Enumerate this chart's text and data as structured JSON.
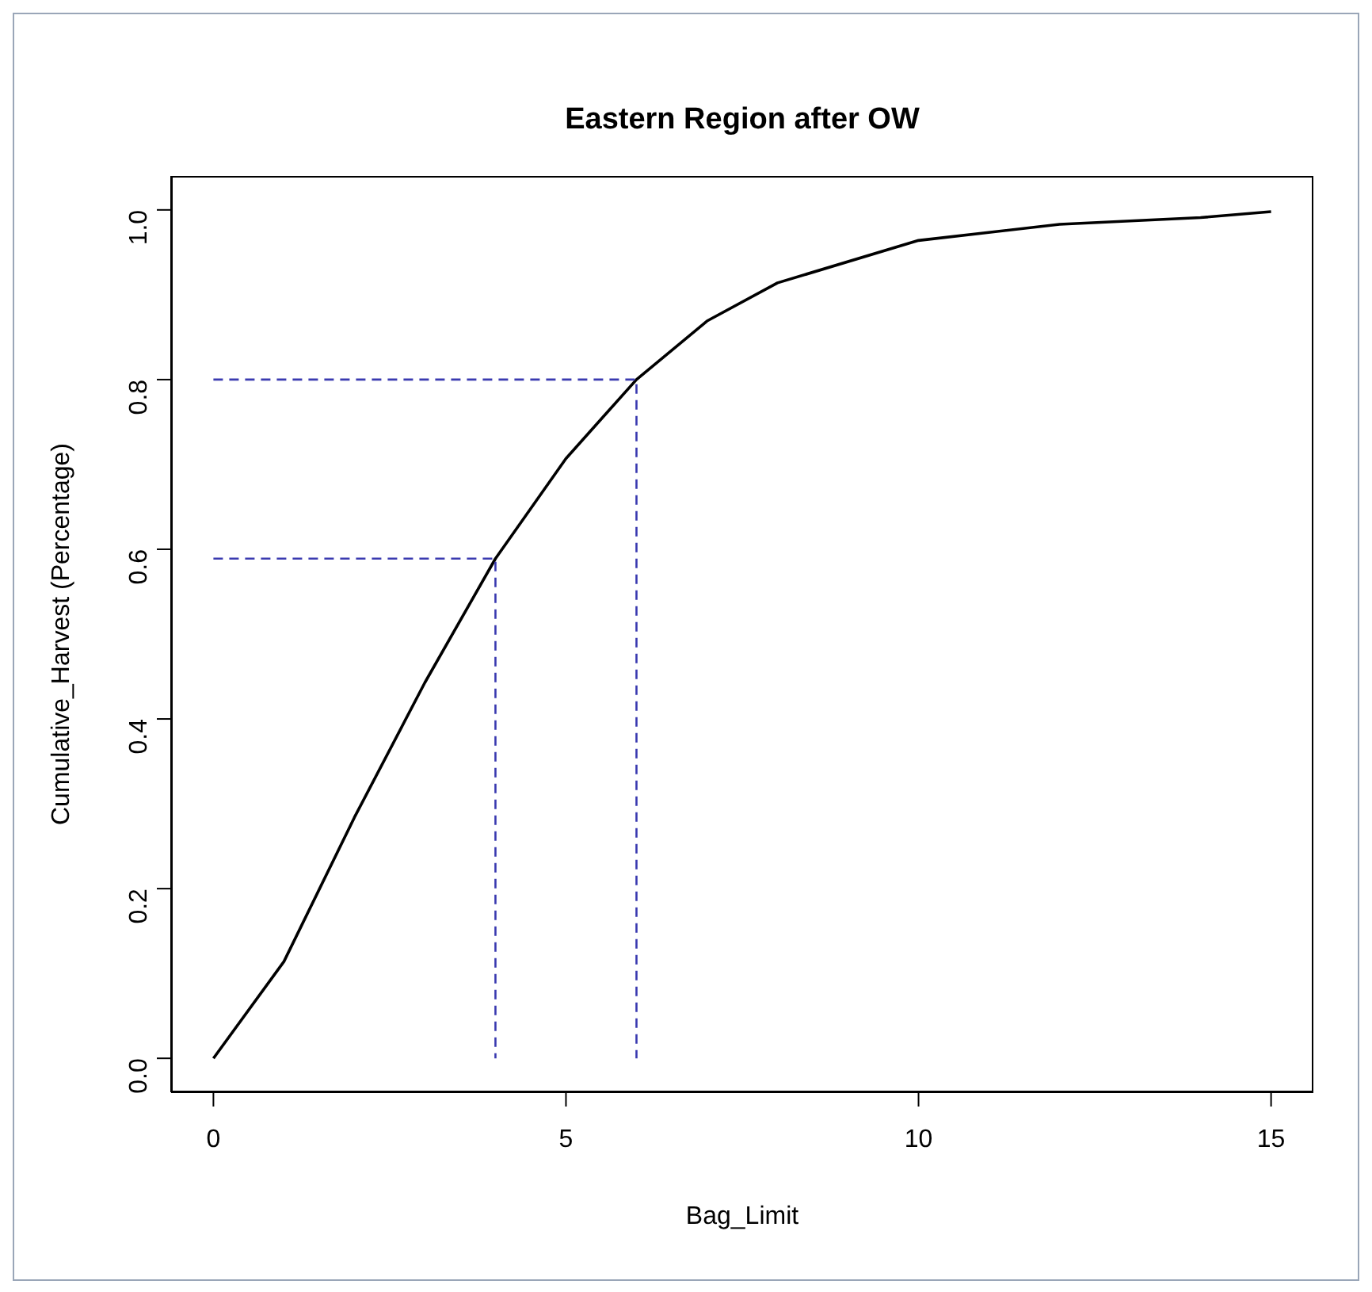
{
  "chart_data": {
    "type": "line",
    "title": "Eastern Region after OW",
    "xlabel": "Bag_Limit",
    "ylabel": "Cumulative_Harvest (Percentage)",
    "x": [
      0,
      1,
      2,
      3,
      4,
      5,
      6,
      7,
      8,
      10,
      12,
      14,
      15
    ],
    "series": [
      {
        "color": "#000000",
        "values": [
          0,
          0.114,
          0.284,
          0.443,
          0.589,
          0.707,
          0.8,
          0.869,
          0.914,
          0.964,
          0.983,
          0.991,
          0.998
        ]
      },
      {
        "color": "#3a3ab0",
        "line_style": "dashed",
        "x": [
          0,
          4,
          4
        ],
        "values": [
          0.589,
          0.589,
          0
        ]
      },
      {
        "color": "#3a3ab0",
        "line_style": "dashed",
        "x": [
          0,
          6,
          6
        ],
        "values": [
          0.8,
          0.8,
          0
        ]
      }
    ],
    "xlim": [
      -0.6,
      15.6
    ],
    "ylim": [
      -0.04,
      1.04
    ],
    "xticks": [
      0,
      5,
      10,
      15
    ],
    "yticks": [
      {
        "value": 0,
        "label": "0.0"
      },
      0.2,
      0.4,
      0.6,
      0.8,
      {
        "value": 1,
        "label": "1.0"
      }
    ],
    "grid": false,
    "marker": "none",
    "line_style": "solid"
  }
}
